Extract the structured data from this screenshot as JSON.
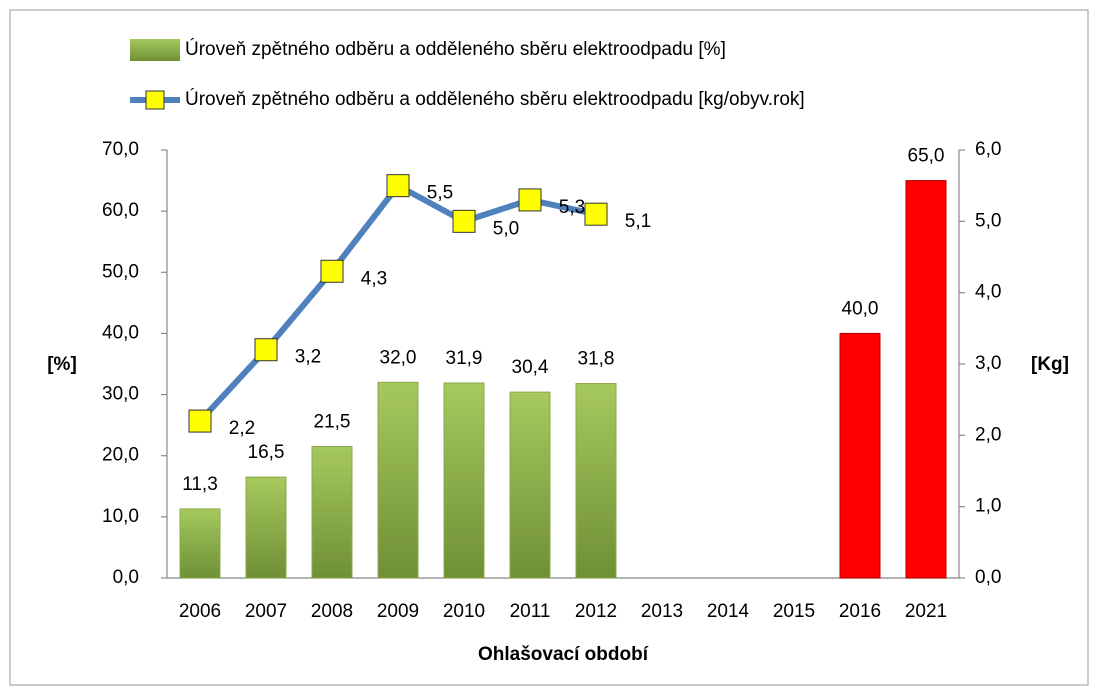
{
  "chart_data": {
    "type": "bar_line",
    "categories": [
      "2006",
      "2007",
      "2008",
      "2009",
      "2010",
      "2011",
      "2012",
      "2013",
      "2014",
      "2015",
      "2016",
      "2021"
    ],
    "xlabel": "Ohlašovací období",
    "ylabel": "[%]",
    "y2label": "[Kg]",
    "ylim": [
      0,
      70
    ],
    "yticks": [
      {
        "value": 0,
        "label": "0,0"
      },
      {
        "value": 10,
        "label": "10,0"
      },
      {
        "value": 20,
        "label": "20,0"
      },
      {
        "value": 30,
        "label": "30,0"
      },
      {
        "value": 40,
        "label": "40,0"
      },
      {
        "value": 50,
        "label": "50,0"
      },
      {
        "value": 60,
        "label": "60,0"
      },
      {
        "value": 70,
        "label": "70,0"
      }
    ],
    "y2lim": [
      0,
      6
    ],
    "y2ticks": [
      {
        "value": 0,
        "label": "0,0"
      },
      {
        "value": 1,
        "label": "1,0"
      },
      {
        "value": 2,
        "label": "2,0"
      },
      {
        "value": 3,
        "label": "3,0"
      },
      {
        "value": 4,
        "label": "4,0"
      },
      {
        "value": 5,
        "label": "5,0"
      },
      {
        "value": 6,
        "label": "6,0"
      }
    ],
    "series": [
      {
        "name": "Úroveň zpětného odběru a odděleného sběru elektroodpadu [%]",
        "kind": "bar",
        "color": "#9bbb59",
        "colors": [
          "#9bbb59",
          "#9bbb59",
          "#9bbb59",
          "#9bbb59",
          "#9bbb59",
          "#9bbb59",
          "#9bbb59",
          "#9bbb59",
          "#9bbb59",
          "#9bbb59",
          "#ff0000",
          "#ff0000"
        ],
        "values": [
          11.3,
          16.5,
          21.5,
          32.0,
          31.9,
          30.4,
          31.8,
          null,
          null,
          null,
          40.0,
          65.0
        ],
        "value_labels": [
          "11,3",
          "16,5",
          "21,5",
          "32,0",
          "31,9",
          "30,4",
          "31,8",
          null,
          null,
          null,
          "40,0",
          "65,0"
        ]
      },
      {
        "name": "Úroveň zpětného odběru a odděleného sběru elektroodpadu [kg/obyv.rok]",
        "kind": "line",
        "axis": "y2",
        "color": "#4f81bd",
        "marker_color": "#ffff00",
        "values": [
          2.2,
          3.2,
          4.3,
          5.5,
          5.0,
          5.3,
          5.1,
          null,
          null,
          null,
          null,
          null
        ],
        "value_labels": [
          "2,2",
          "3,2",
          "4,3",
          "5,5",
          "5,0",
          "5,3",
          "5,1",
          null,
          null,
          null,
          null,
          null
        ]
      }
    ]
  }
}
